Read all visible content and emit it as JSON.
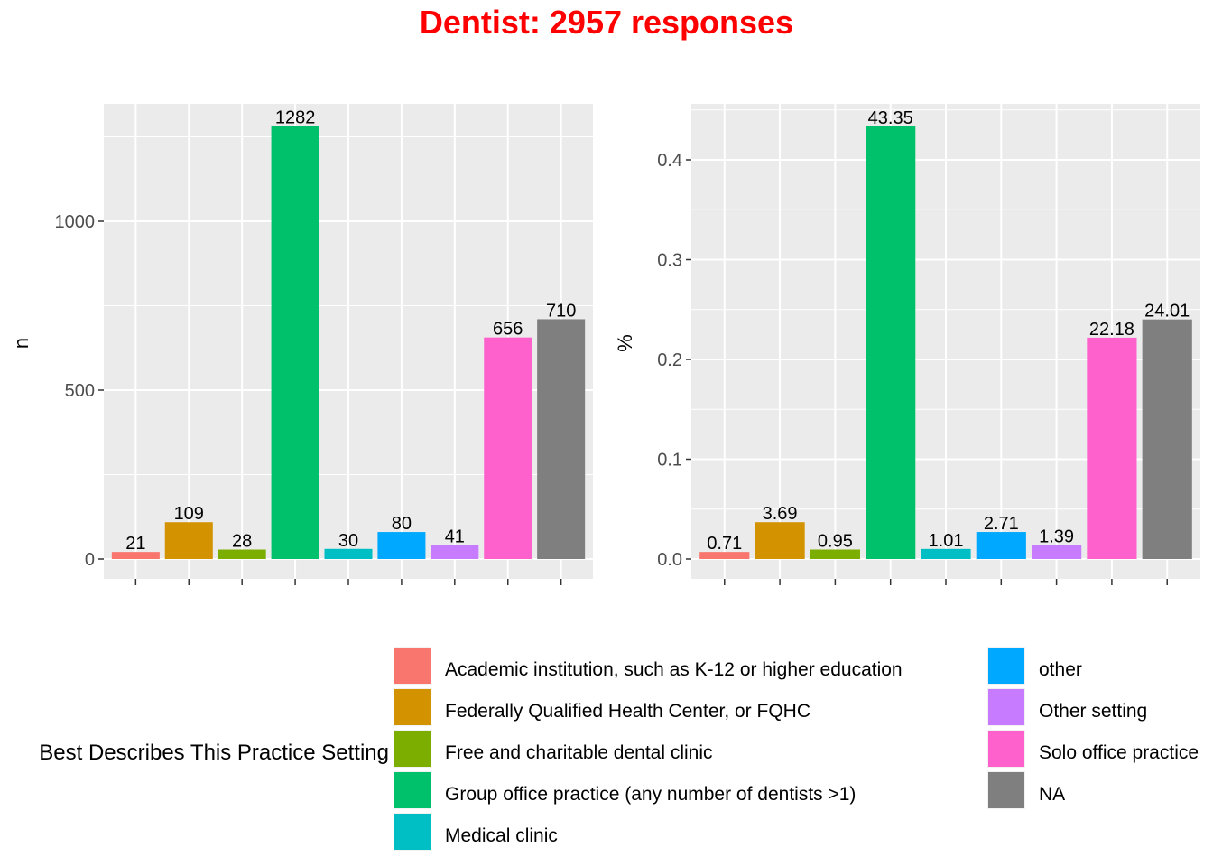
{
  "title": "Dentist: 2957 responses",
  "title_color": "#ff0000",
  "panel_background": "#ebebeb",
  "legend": {
    "title": "Best Describes This Practice Setting",
    "entries": [
      {
        "label": "Academic institution, such as K-12 or higher education",
        "color": "#f8766d"
      },
      {
        "label": "Federally Qualified Health Center, or FQHC",
        "color": "#d39200"
      },
      {
        "label": "Free and charitable dental clinic",
        "color": "#7cae00"
      },
      {
        "label": "Group office practice (any number of dentists >1)",
        "color": "#00c16b"
      },
      {
        "label": "Medical clinic",
        "color": "#00bfc4"
      },
      {
        "label": "other",
        "color": "#00a9ff"
      },
      {
        "label": "Other setting",
        "color": "#c77cff"
      },
      {
        "label": "Solo office practice",
        "color": "#ff61cc"
      },
      {
        "label": "NA",
        "color": "#7f7f7f"
      }
    ]
  },
  "chart_data": [
    {
      "type": "bar",
      "title": "",
      "xlabel": "",
      "ylabel": "n",
      "ylim": [
        0,
        1330
      ],
      "yticks": [
        0,
        500,
        1000
      ],
      "ytick_labels": [
        "0",
        "500",
        "1000"
      ],
      "grid": true,
      "categories": [
        "Academic institution, such as K-12 or higher education",
        "Federally Qualified Health Center, or FQHC",
        "Free and charitable dental clinic",
        "Group office practice (any number of dentists >1)",
        "Medical clinic",
        "other",
        "Other setting",
        "Solo office practice",
        "NA"
      ],
      "values": [
        21,
        109,
        28,
        1282,
        30,
        80,
        41,
        656,
        710
      ],
      "data_labels": [
        "21",
        "109",
        "28",
        "1282",
        "30",
        "80",
        "41",
        "656",
        "710"
      ]
    },
    {
      "type": "bar",
      "title": "",
      "xlabel": "",
      "ylabel": "%",
      "ylim": [
        0,
        0.45
      ],
      "yticks": [
        0,
        0.1,
        0.2,
        0.3,
        0.4
      ],
      "ytick_labels": [
        "0.0",
        "0.1",
        "0.2",
        "0.3",
        "0.4"
      ],
      "grid": true,
      "categories": [
        "Academic institution, such as K-12 or higher education",
        "Federally Qualified Health Center, or FQHC",
        "Free and charitable dental clinic",
        "Group office practice (any number of dentists >1)",
        "Medical clinic",
        "other",
        "Other setting",
        "Solo office practice",
        "NA"
      ],
      "values": [
        0.0071,
        0.0369,
        0.0095,
        0.4335,
        0.0101,
        0.0271,
        0.0139,
        0.2218,
        0.2401
      ],
      "data_labels": [
        "0.71",
        "3.69",
        "0.95",
        "43.35",
        "1.01",
        "2.71",
        "1.39",
        "22.18",
        "24.01"
      ]
    }
  ]
}
